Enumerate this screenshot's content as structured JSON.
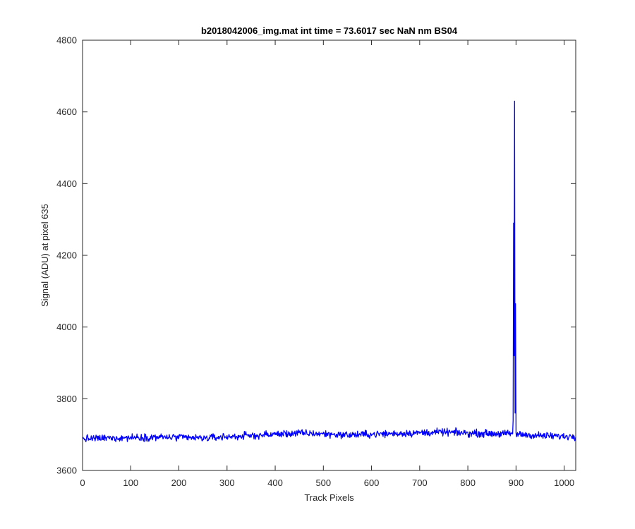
{
  "chart_data": {
    "type": "line",
    "title": "b2018042006_img.mat int time = 73.6017 sec  NaN nm BS04",
    "xlabel": "Track Pixels",
    "ylabel": "Signal (ADU) at pixel 635",
    "xlim": [
      0,
      1024
    ],
    "ylim": [
      3600,
      4800
    ],
    "xticks": [
      0,
      100,
      200,
      300,
      400,
      500,
      600,
      700,
      800,
      900,
      1000
    ],
    "yticks": [
      3600,
      3800,
      4000,
      4200,
      4400,
      4600,
      4800
    ],
    "grid": false,
    "legend": "none",
    "line_color": "#0000ff",
    "series": [
      {
        "color": "#0000ff",
        "baseline": [
          [
            0,
            3688
          ],
          [
            50,
            3690
          ],
          [
            100,
            3692
          ],
          [
            150,
            3693
          ],
          [
            200,
            3692
          ],
          [
            250,
            3690
          ],
          [
            300,
            3694
          ],
          [
            350,
            3697
          ],
          [
            400,
            3701
          ],
          [
            450,
            3704
          ],
          [
            500,
            3702
          ],
          [
            550,
            3699
          ],
          [
            600,
            3701
          ],
          [
            650,
            3703
          ],
          [
            700,
            3705
          ],
          [
            750,
            3707
          ],
          [
            800,
            3704
          ],
          [
            850,
            3703
          ],
          [
            890,
            3702
          ],
          [
            950,
            3697
          ],
          [
            1000,
            3695
          ],
          [
            1024,
            3696
          ]
        ],
        "noise_amplitude": 10,
        "spike": [
          [
            893,
            3702
          ],
          [
            894,
            3740
          ],
          [
            895,
            4290
          ],
          [
            896,
            3920
          ],
          [
            897,
            4630
          ],
          [
            898,
            3760
          ],
          [
            899,
            4065
          ],
          [
            900,
            3705
          ]
        ]
      }
    ]
  }
}
